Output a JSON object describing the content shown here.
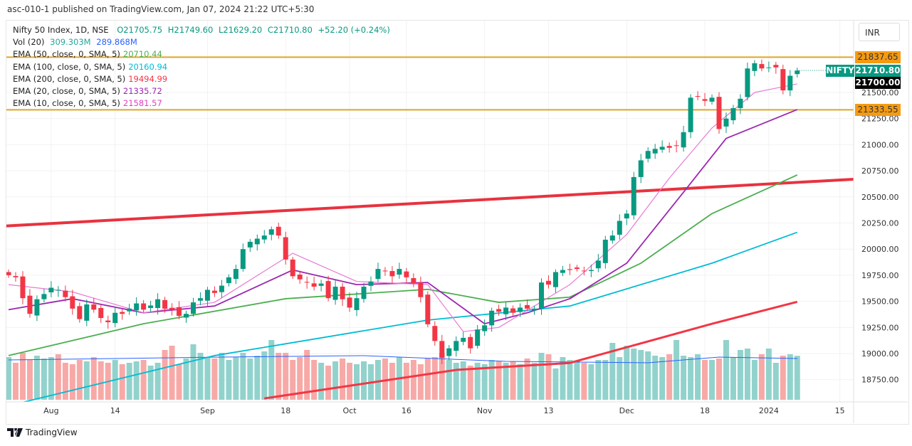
{
  "header": {
    "published": "asc-010-1 published on TradingView.com, Jan 07, 2024 21:22 UTC+5:30"
  },
  "legend": {
    "symbol": "Nifty 50 Index, 1D, NSE",
    "open": "O21705.75",
    "high": "H21749.60",
    "low": "L21629.20",
    "close": "C21710.80",
    "change": "+52.20 (+0.24%)",
    "vol_label": "Vol (20)",
    "vol_value": "309.303M",
    "vol_ma": "289.868M",
    "emas": [
      {
        "label": "EMA (50, close, 0, SMA, 5)",
        "value": "20710.44",
        "color": "#4caf50"
      },
      {
        "label": "EMA (100, close, 0, SMA, 5)",
        "value": "20160.94",
        "color": "#00bcd4"
      },
      {
        "label": "EMA (200, close, 0, SMA, 5)",
        "value": "19494.99",
        "color": "#f23645"
      },
      {
        "label": "EMA (20, close, 0, SMA, 5)",
        "value": "21335.72",
        "color": "#9c27b0"
      },
      {
        "label": "EMA (10, close, 0, SMA, 5)",
        "value": "21581.57",
        "color": "#e040c0"
      }
    ]
  },
  "currency": "INR",
  "price_labels": {
    "upper_line": "21837.65",
    "nifty_tag": "NIFTY",
    "last": "21710.80",
    "crosshair": "21700.00",
    "lower_line": "21333.55"
  },
  "footer": {
    "brand": "TradingView"
  },
  "colors": {
    "up": "#089981",
    "down": "#f23645",
    "vol_up": "#92d2cc",
    "vol_down": "#f7a9a7",
    "hline": "#e0a526",
    "trend": "#e8323f"
  },
  "chart_data": {
    "type": "candlestick",
    "y_ticks": [
      18750,
      19000,
      19250,
      19500,
      19750,
      20000,
      20250,
      20500,
      20750,
      21000,
      21250,
      21500
    ],
    "x_labels": [
      {
        "i": 6,
        "t": "Aug"
      },
      {
        "i": 15,
        "t": "14"
      },
      {
        "i": 28,
        "t": "Sep"
      },
      {
        "i": 39,
        "t": "18"
      },
      {
        "i": 48,
        "t": "Oct"
      },
      {
        "i": 56,
        "t": "16"
      },
      {
        "i": 67,
        "t": "Nov"
      },
      {
        "i": 76,
        "t": "13"
      },
      {
        "i": 87,
        "t": "Dec"
      },
      {
        "i": 98,
        "t": "18"
      },
      {
        "i": 107,
        "t": "2024"
      },
      {
        "i": 117,
        "t": "15"
      }
    ],
    "closes": [
      19750,
      19730,
      19530,
      19380,
      19520,
      19570,
      19630,
      19610,
      19540,
      19430,
      19330,
      19470,
      19420,
      19340,
      19300,
      19390,
      19380,
      19430,
      19480,
      19420,
      19460,
      19520,
      19430,
      19420,
      19360,
      19380,
      19490,
      19530,
      19610,
      19580,
      19650,
      19730,
      19810,
      20000,
      20070,
      20100,
      20130,
      20190,
      20130,
      19900,
      19740,
      19710,
      19680,
      19640,
      19670,
      19530,
      19640,
      19520,
      19440,
      19530,
      19640,
      19690,
      19810,
      19790,
      19740,
      19810,
      19730,
      19670,
      19540,
      19280,
      19120,
      18960,
      19050,
      19120,
      19150,
      19050,
      19230,
      19270,
      19410,
      19400,
      19440,
      19390,
      19440,
      19430,
      19430,
      19680,
      19660,
      19780,
      19800,
      19800,
      19810,
      19790,
      19800,
      19890,
      20090,
      20130,
      20270,
      20340,
      20690,
      20850,
      20940,
      20960,
      20980,
      20970,
      20990,
      21120,
      21450,
      21460,
      21420,
      21450,
      21150,
      21250,
      21350,
      21440,
      21730,
      21780,
      21730,
      21740,
      21740,
      21520,
      21660,
      21710
    ],
    "volumes": [
      300,
      260,
      330,
      280,
      310,
      290,
      300,
      320,
      260,
      250,
      280,
      270,
      300,
      270,
      260,
      280,
      250,
      260,
      270,
      280,
      240,
      260,
      350,
      380,
      250,
      290,
      390,
      330,
      300,
      290,
      330,
      280,
      300,
      330,
      290,
      310,
      340,
      420,
      330,
      330,
      280,
      300,
      350,
      280,
      260,
      240,
      270,
      290,
      260,
      250,
      270,
      250,
      280,
      290,
      260,
      300,
      260,
      280,
      250,
      290,
      300,
      330,
      280,
      260,
      270,
      240,
      260,
      250,
      280,
      270,
      260,
      270,
      250,
      290,
      260,
      330,
      320,
      220,
      300,
      280,
      270,
      260,
      250,
      280,
      280,
      400,
      300,
      380,
      360,
      350,
      340,
      310,
      300,
      320,
      420,
      310,
      300,
      320,
      280,
      280,
      290,
      420,
      300,
      350,
      360,
      280,
      320,
      360,
      260,
      310,
      320,
      309
    ],
    "vol_ma_line": [
      {
        "i": 0,
        "v": 280
      },
      {
        "i": 30,
        "v": 300
      },
      {
        "i": 50,
        "v": 310
      },
      {
        "i": 70,
        "v": 270
      },
      {
        "i": 90,
        "v": 260
      },
      {
        "i": 100,
        "v": 300
      },
      {
        "i": 111,
        "v": 290
      }
    ],
    "emas": [
      {
        "name": "EMA 200",
        "color": "#f23645",
        "points": [
          [
            36,
            18570
          ],
          [
            63,
            18843
          ],
          [
            79,
            18910
          ],
          [
            99,
            19285
          ],
          [
            111,
            19495
          ]
        ]
      },
      {
        "name": "EMA 100",
        "color": "#00bcd4",
        "points": [
          [
            0,
            18500
          ],
          [
            29,
            18980
          ],
          [
            59,
            19320
          ],
          [
            79,
            19455
          ],
          [
            99,
            19865
          ],
          [
            111,
            20161
          ]
        ]
      },
      {
        "name": "EMA 50",
        "color": "#4caf50",
        "points": [
          [
            0,
            18980
          ],
          [
            19,
            19285
          ],
          [
            39,
            19525
          ],
          [
            59,
            19615
          ],
          [
            69,
            19490
          ],
          [
            79,
            19540
          ],
          [
            89,
            19865
          ],
          [
            99,
            20340
          ],
          [
            111,
            20710
          ]
        ]
      },
      {
        "name": "EMA 20",
        "color": "#9c27b0",
        "points": [
          [
            0,
            19420
          ],
          [
            9,
            19525
          ],
          [
            19,
            19390
          ],
          [
            29,
            19455
          ],
          [
            40,
            19800
          ],
          [
            49,
            19660
          ],
          [
            59,
            19680
          ],
          [
            67,
            19285
          ],
          [
            73,
            19390
          ],
          [
            79,
            19525
          ],
          [
            87,
            19865
          ],
          [
            95,
            20545
          ],
          [
            101,
            21060
          ],
          [
            111,
            21336
          ]
        ]
      },
      {
        "name": "EMA 10",
        "color": "#e87ad6",
        "points": [
          [
            0,
            19660
          ],
          [
            9,
            19590
          ],
          [
            19,
            19390
          ],
          [
            29,
            19490
          ],
          [
            40,
            19960
          ],
          [
            49,
            19690
          ],
          [
            59,
            19660
          ],
          [
            64,
            19210
          ],
          [
            69,
            19250
          ],
          [
            79,
            19660
          ],
          [
            87,
            20140
          ],
          [
            93,
            20680
          ],
          [
            99,
            21160
          ],
          [
            105,
            21500
          ],
          [
            111,
            21582
          ]
        ]
      }
    ],
    "hlines": [
      21837.65,
      21333.55
    ],
    "trendline": [
      [
        -1,
        20219
      ],
      [
        119,
        20669
      ]
    ]
  }
}
